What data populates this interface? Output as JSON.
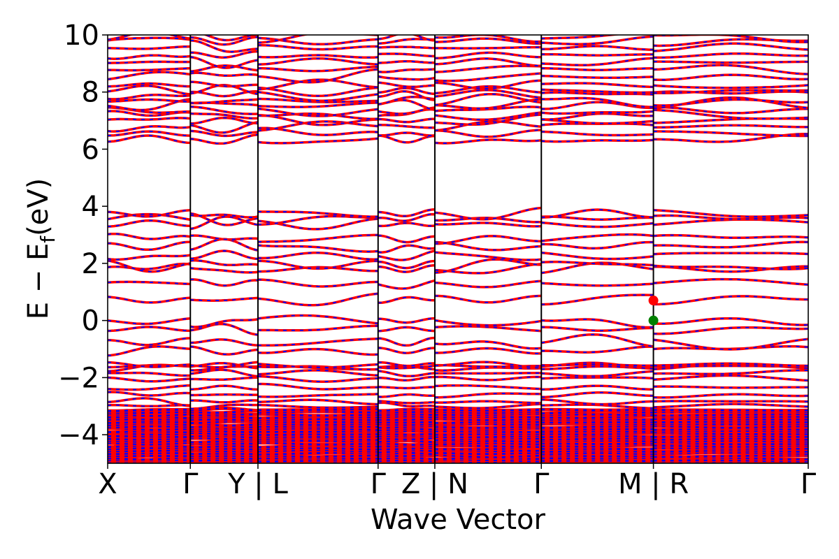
{
  "chart_data": {
    "type": "line",
    "title": "",
    "xlabel": "Wave Vector",
    "ylabel": "E − E_f (eV)",
    "ylabel_parts": {
      "main": "E − E",
      "sub": "f",
      "unit": "(eV)"
    },
    "ylim": [
      -5,
      10
    ],
    "yticks": [
      -4,
      -2,
      0,
      2,
      4,
      6,
      8,
      10
    ],
    "ytick_labels": [
      "−4",
      "−2",
      "0",
      "2",
      "4",
      "6",
      "8",
      "10"
    ],
    "xlim": [
      0,
      1.0
    ],
    "kpath_ticks": [
      {
        "x": 0.0,
        "label": "X"
      },
      {
        "x": 0.118,
        "label": "Γ"
      },
      {
        "x": 0.2145,
        "label": "Y | L"
      },
      {
        "x": 0.386,
        "label": "Γ"
      },
      {
        "x": 0.467,
        "label": "Z | N"
      },
      {
        "x": 0.619,
        "label": "Γ"
      },
      {
        "x": 0.779,
        "label": "M | R"
      },
      {
        "x": 1.0,
        "label": "Γ"
      }
    ],
    "segment_boundaries": [
      0.0,
      0.118,
      0.2145,
      0.386,
      0.467,
      0.619,
      0.779,
      1.0
    ],
    "grid": false,
    "legend": "none",
    "series_style": {
      "solid_color": "#ff0000",
      "dash_color": "#0000ff"
    },
    "bands_summary": {
      "conduction_upper_range": [
        6.3,
        10
      ],
      "conduction_middle_range": [
        0.75,
        3.85
      ],
      "valence_top_range": [
        -2.4,
        0.0
      ],
      "dense_valence_range": [
        -5,
        -3.1
      ],
      "gap_empty_region": [
        3.9,
        6.3
      ]
    },
    "band_gap_markers": [
      {
        "name": "CBM",
        "x": 0.779,
        "y": 0.7,
        "color": "#ff0000"
      },
      {
        "name": "VBM",
        "x": 0.779,
        "y": 0.0,
        "color": "#008000"
      }
    ]
  },
  "colors": {
    "band_solid": "#ff0000",
    "band_dash": "#0000ff",
    "vbm_marker": "#008000",
    "cbm_marker": "#ff0000",
    "axes": "#000000"
  }
}
